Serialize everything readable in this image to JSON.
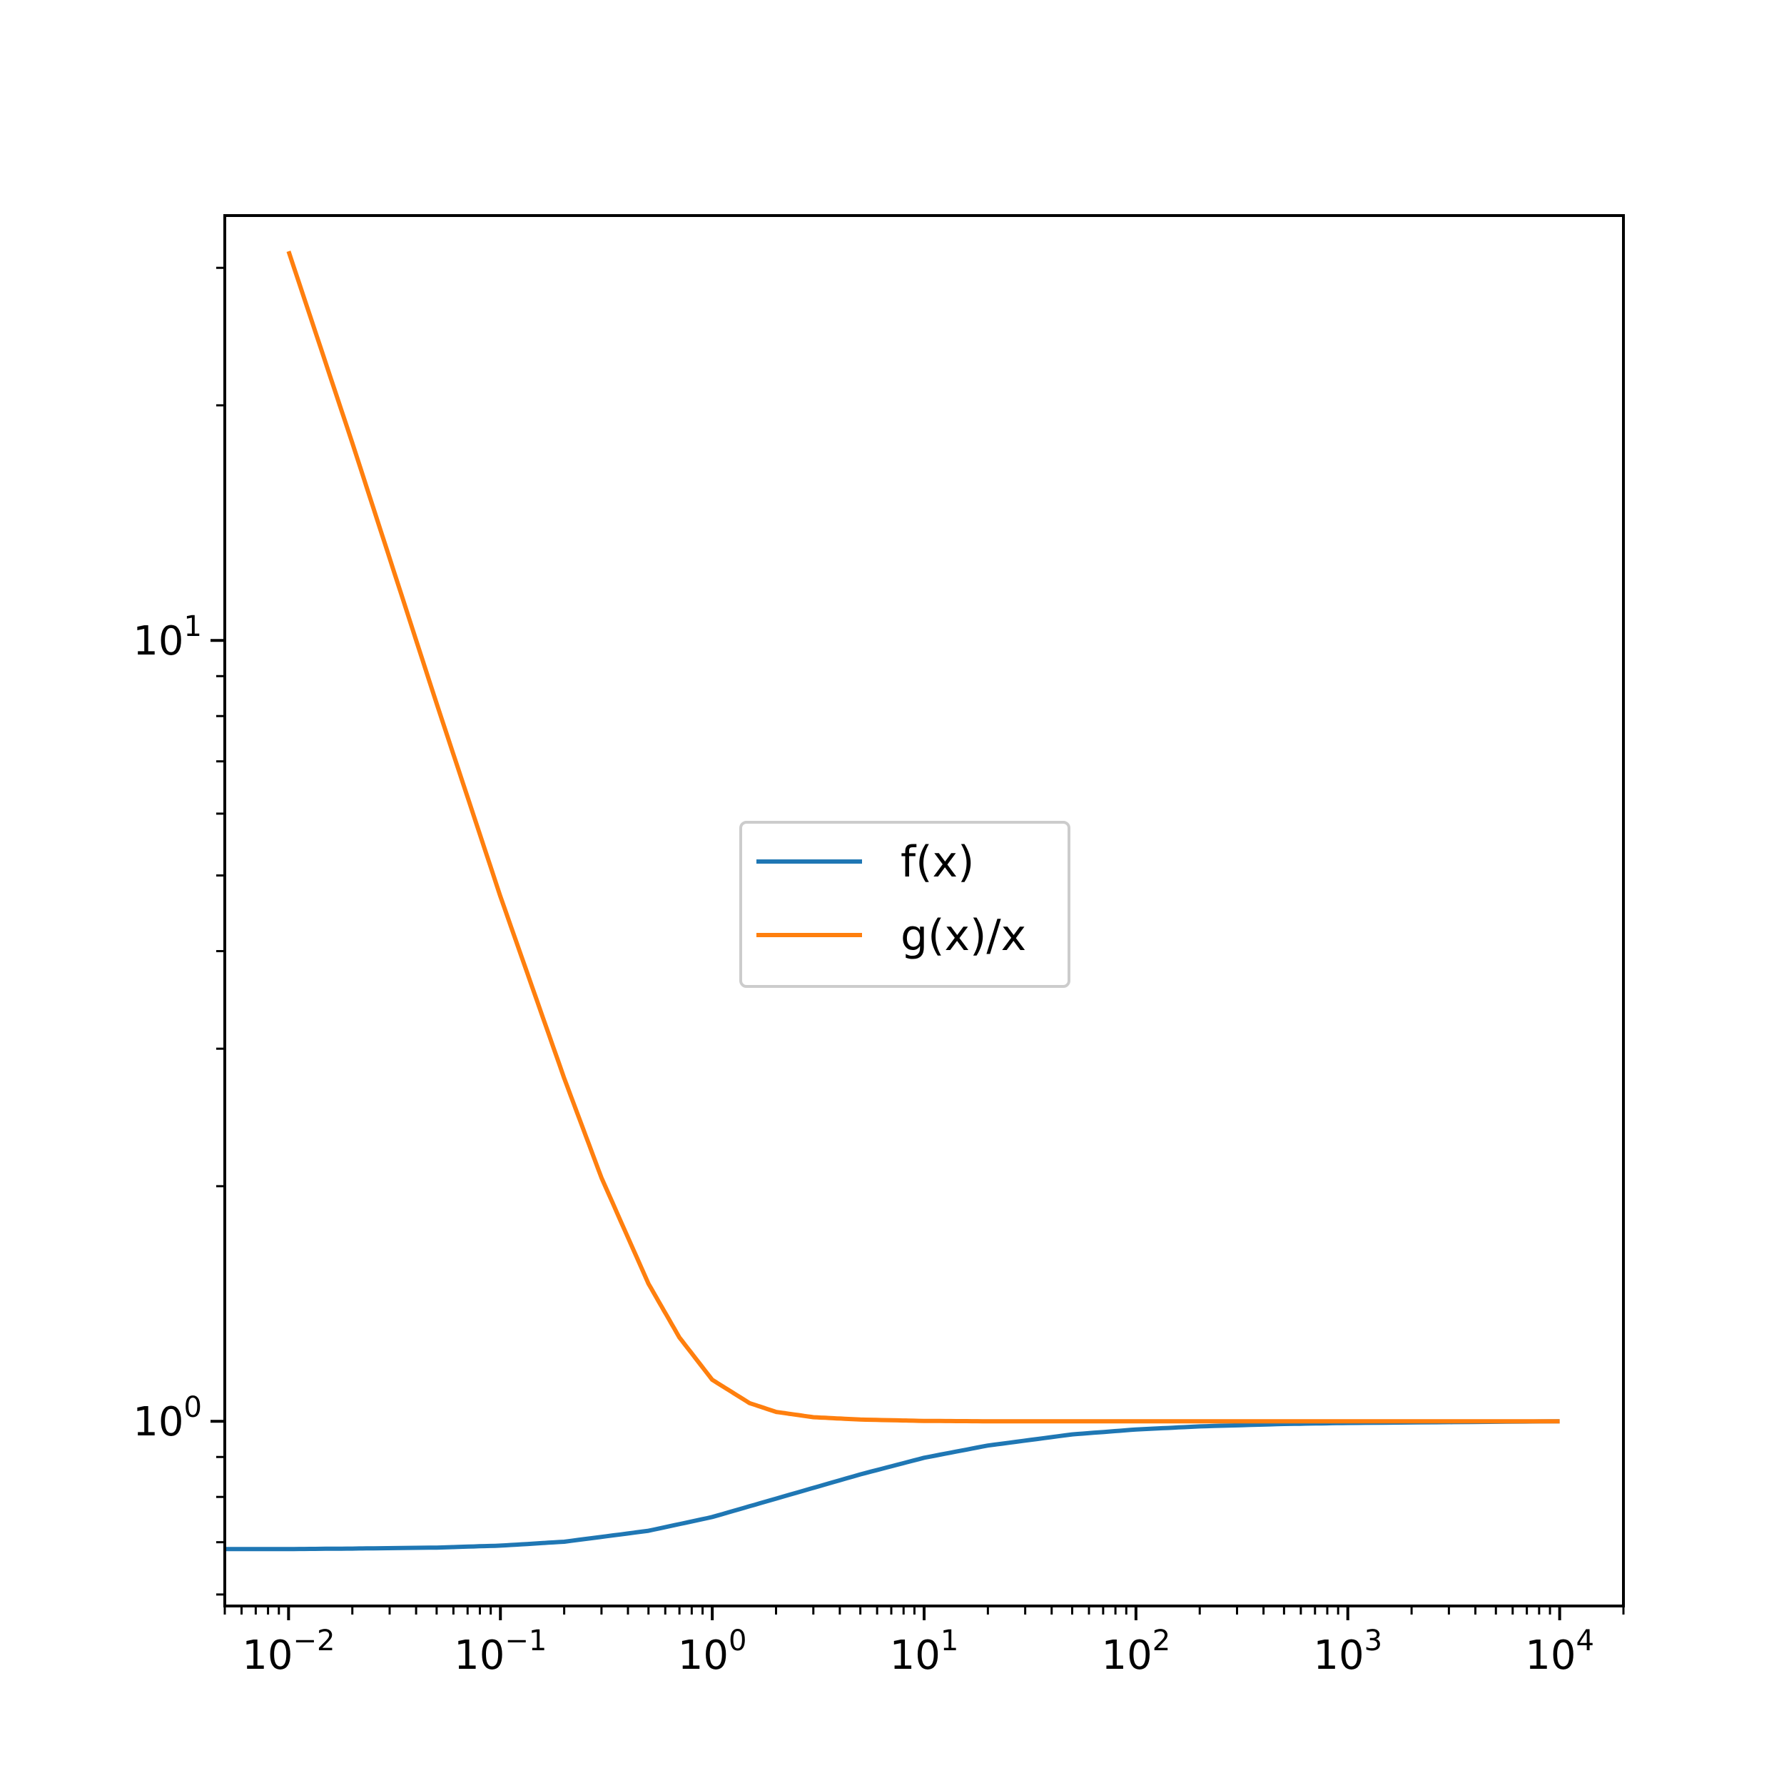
{
  "chart_data": {
    "type": "line",
    "title": "",
    "xlabel": "",
    "ylabel": "",
    "xscale": "log",
    "yscale": "log",
    "xlim": [
      0.005,
      20000
    ],
    "ylim": [
      0.58,
      35
    ],
    "grid": false,
    "legend": {
      "position": "center",
      "entries": [
        "f(x)",
        "g(x)/x"
      ]
    },
    "xticks": [
      {
        "value": 0.01,
        "base": "10",
        "exp": "−2"
      },
      {
        "value": 0.1,
        "base": "10",
        "exp": "−1"
      },
      {
        "value": 1,
        "base": "10",
        "exp": "0"
      },
      {
        "value": 10,
        "base": "10",
        "exp": "1"
      },
      {
        "value": 100,
        "base": "10",
        "exp": "2"
      },
      {
        "value": 1000,
        "base": "10",
        "exp": "3"
      },
      {
        "value": 10000,
        "base": "10",
        "exp": "4"
      }
    ],
    "yticks": [
      {
        "value": 1,
        "base": "10",
        "exp": "0"
      },
      {
        "value": 10,
        "base": "10",
        "exp": "1"
      }
    ],
    "series": [
      {
        "name": "f(x)",
        "color": "#1f77b4",
        "x": [
          0.005,
          0.01,
          0.02,
          0.05,
          0.1,
          0.2,
          0.5,
          1,
          2,
          5,
          10,
          20,
          50,
          100,
          200,
          500,
          1000,
          10000
        ],
        "y": [
          0.686,
          0.686,
          0.687,
          0.689,
          0.693,
          0.701,
          0.724,
          0.754,
          0.796,
          0.855,
          0.898,
          0.931,
          0.962,
          0.976,
          0.985,
          0.992,
          0.995,
          1.0
        ]
      },
      {
        "name": "g(x)/x",
        "color": "#ff7f0e",
        "x": [
          0.01,
          0.02,
          0.05,
          0.1,
          0.2,
          0.3,
          0.5,
          0.7,
          1,
          1.5,
          2,
          3,
          5,
          10,
          20,
          50,
          100,
          1000,
          10000
        ],
        "y": [
          31.5,
          17.9,
          8.3,
          4.7,
          2.75,
          2.05,
          1.5,
          1.28,
          1.13,
          1.055,
          1.028,
          1.012,
          1.005,
          1.001,
          1.0,
          1.0,
          1.0,
          1.0,
          1.0
        ]
      }
    ]
  }
}
